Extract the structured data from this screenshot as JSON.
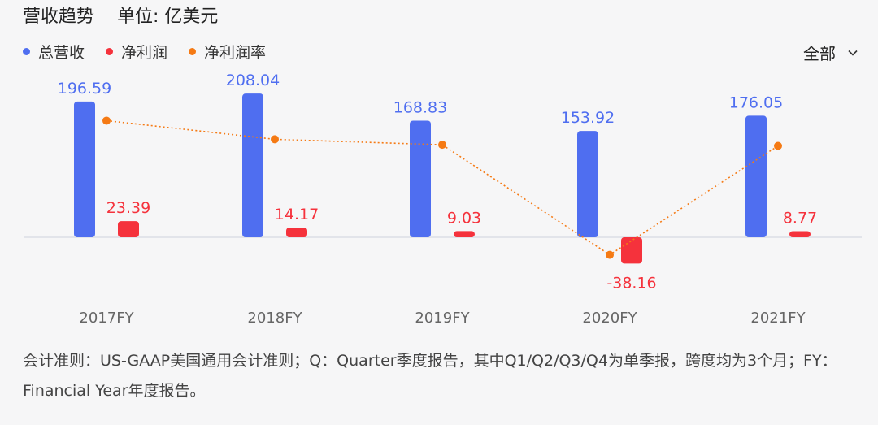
{
  "header": {
    "title": "营收趋势",
    "unit": "单位: 亿美元",
    "scope_label": "全部"
  },
  "legend": [
    {
      "label": "总营收",
      "color": "#4f6ef0"
    },
    {
      "label": "净利润",
      "color": "#f5323c"
    },
    {
      "label": "净利润率",
      "color": "#f57a14"
    }
  ],
  "chart_data": {
    "type": "bar",
    "categories": [
      "2017FY",
      "2018FY",
      "2019FY",
      "2020FY",
      "2021FY"
    ],
    "series": [
      {
        "name": "总营收",
        "type": "bar",
        "color": "#4f6ef0",
        "values": [
          196.59,
          208.04,
          168.83,
          153.92,
          176.05
        ]
      },
      {
        "name": "净利润",
        "type": "bar",
        "color": "#f5323c",
        "values": [
          23.39,
          14.17,
          9.03,
          -38.16,
          8.77
        ]
      },
      {
        "name": "净利润率",
        "type": "line",
        "style": "dotted",
        "color": "#f57a14",
        "values": [
          11.9,
          6.8,
          5.3,
          -24.8,
          5.0
        ],
        "unit": "%"
      }
    ],
    "grid": false,
    "legend_position": "top-left"
  },
  "footnote": "会计准则：US-GAAP美国通用会计准则；Q：Quarter季度报告，其中Q1/Q2/Q3/Q4为单季报，跨度均为3个月；FY：Financial Year年度报告。"
}
